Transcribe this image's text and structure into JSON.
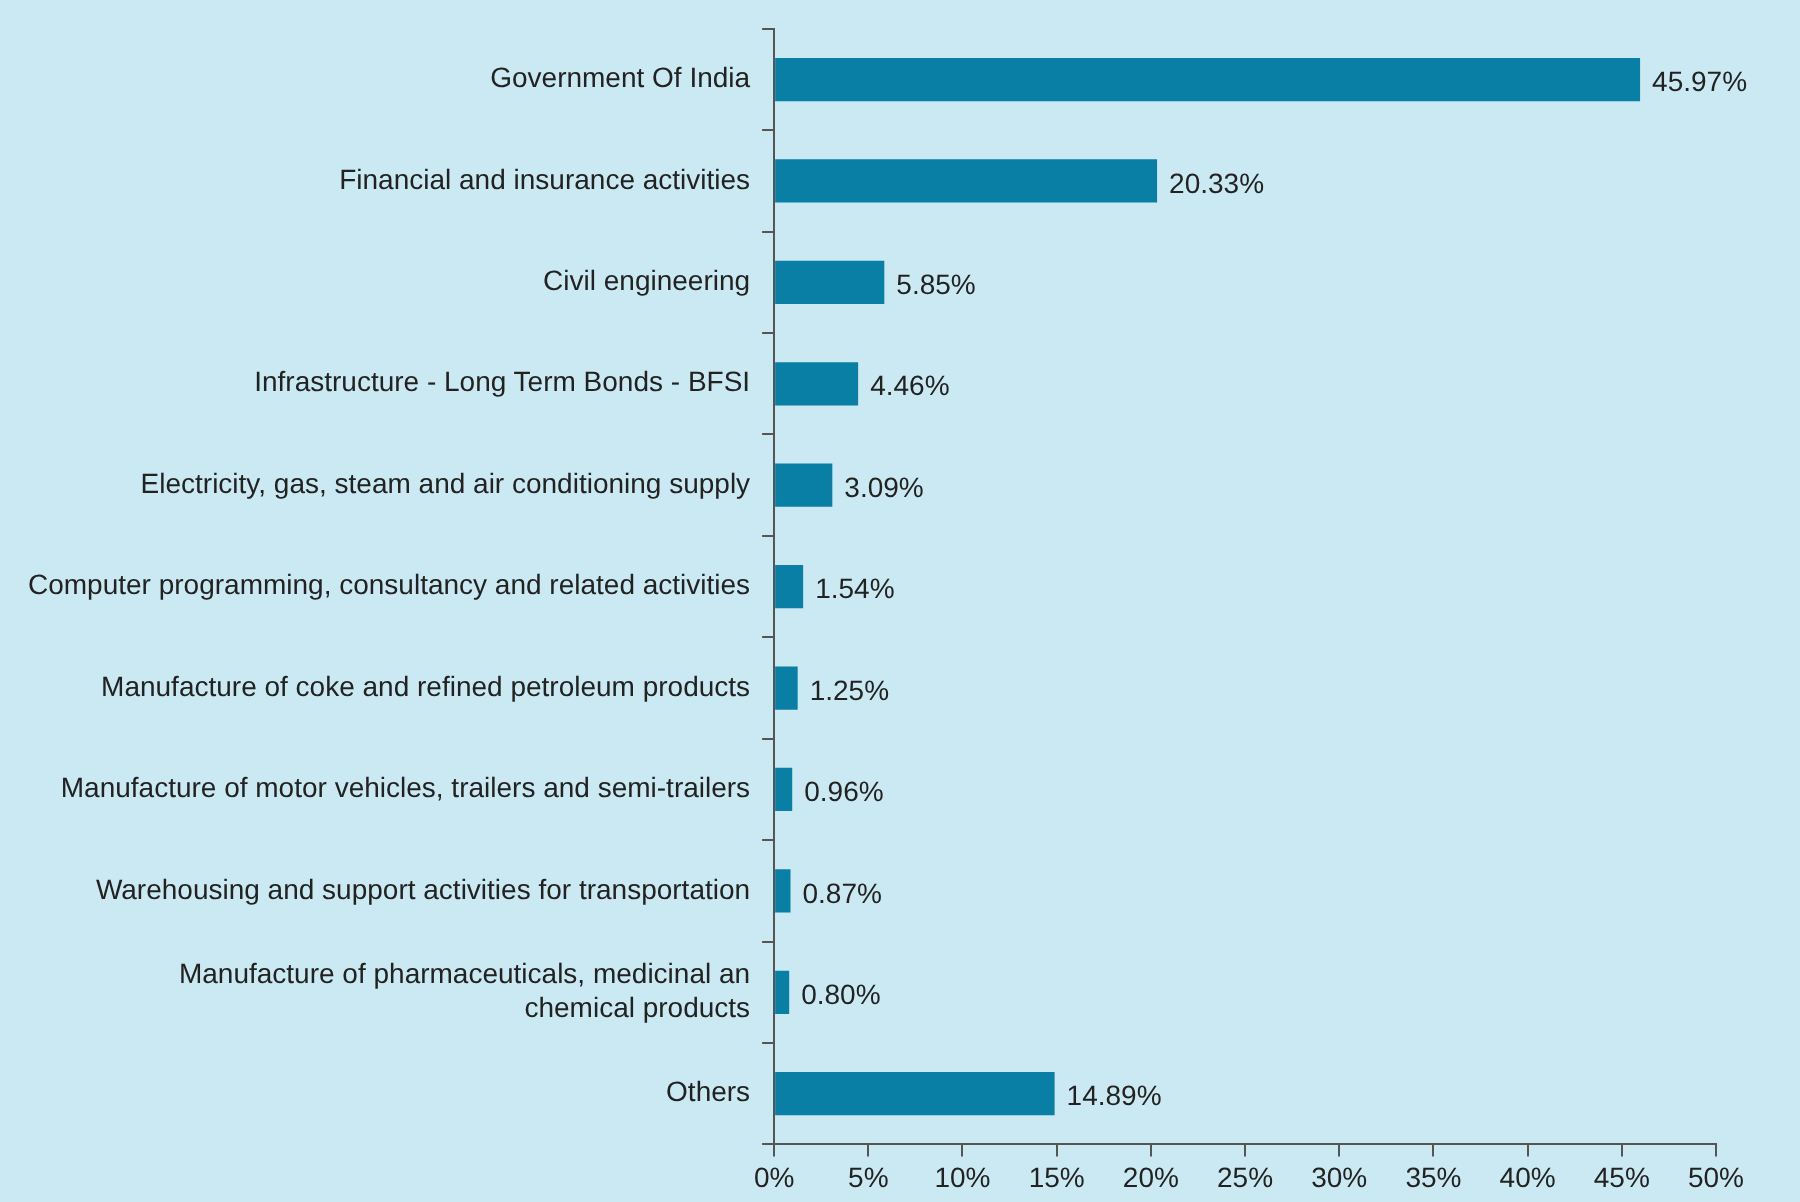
{
  "chart_data": {
    "type": "bar",
    "orientation": "horizontal",
    "categories": [
      "Government Of India",
      "Financial and insurance activities",
      "Civil engineering",
      "Infrastructure - Long Term Bonds - BFSI",
      "Electricity, gas, steam and air conditioning supply",
      "Computer programming, consultancy and related activities",
      "Manufacture of coke and refined petroleum products",
      "Manufacture of motor vehicles, trailers and semi-trailers",
      "Warehousing and support activities for transportation",
      "Manufacture of pharmaceuticals, medicinal an chemical products",
      "Others"
    ],
    "values": [
      45.97,
      20.33,
      5.85,
      4.46,
      3.09,
      1.54,
      1.25,
      0.96,
      0.87,
      0.8,
      14.89
    ],
    "value_labels": [
      "45.97%",
      "20.33%",
      "5.85%",
      "4.46%",
      "3.09%",
      "1.54%",
      "1.25%",
      "0.96%",
      "0.87%",
      "0.80%",
      "14.89%"
    ],
    "color": "#0a7fa6",
    "xlim": [
      0,
      50
    ],
    "xticks": [
      {
        "value": 0,
        "label": "0%"
      },
      {
        "value": 5,
        "label": "5%"
      },
      {
        "value": 10,
        "label": "10%"
      },
      {
        "value": 15,
        "label": "15%"
      },
      {
        "value": 20,
        "label": "20%"
      },
      {
        "value": 25,
        "label": "25%"
      },
      {
        "value": 30,
        "label": "30%"
      },
      {
        "value": 35,
        "label": "35%"
      },
      {
        "value": 40,
        "label": "40%"
      },
      {
        "value": 45,
        "label": "45%"
      },
      {
        "value": 50,
        "label": "50%"
      }
    ],
    "grid": false,
    "legend": false
  }
}
